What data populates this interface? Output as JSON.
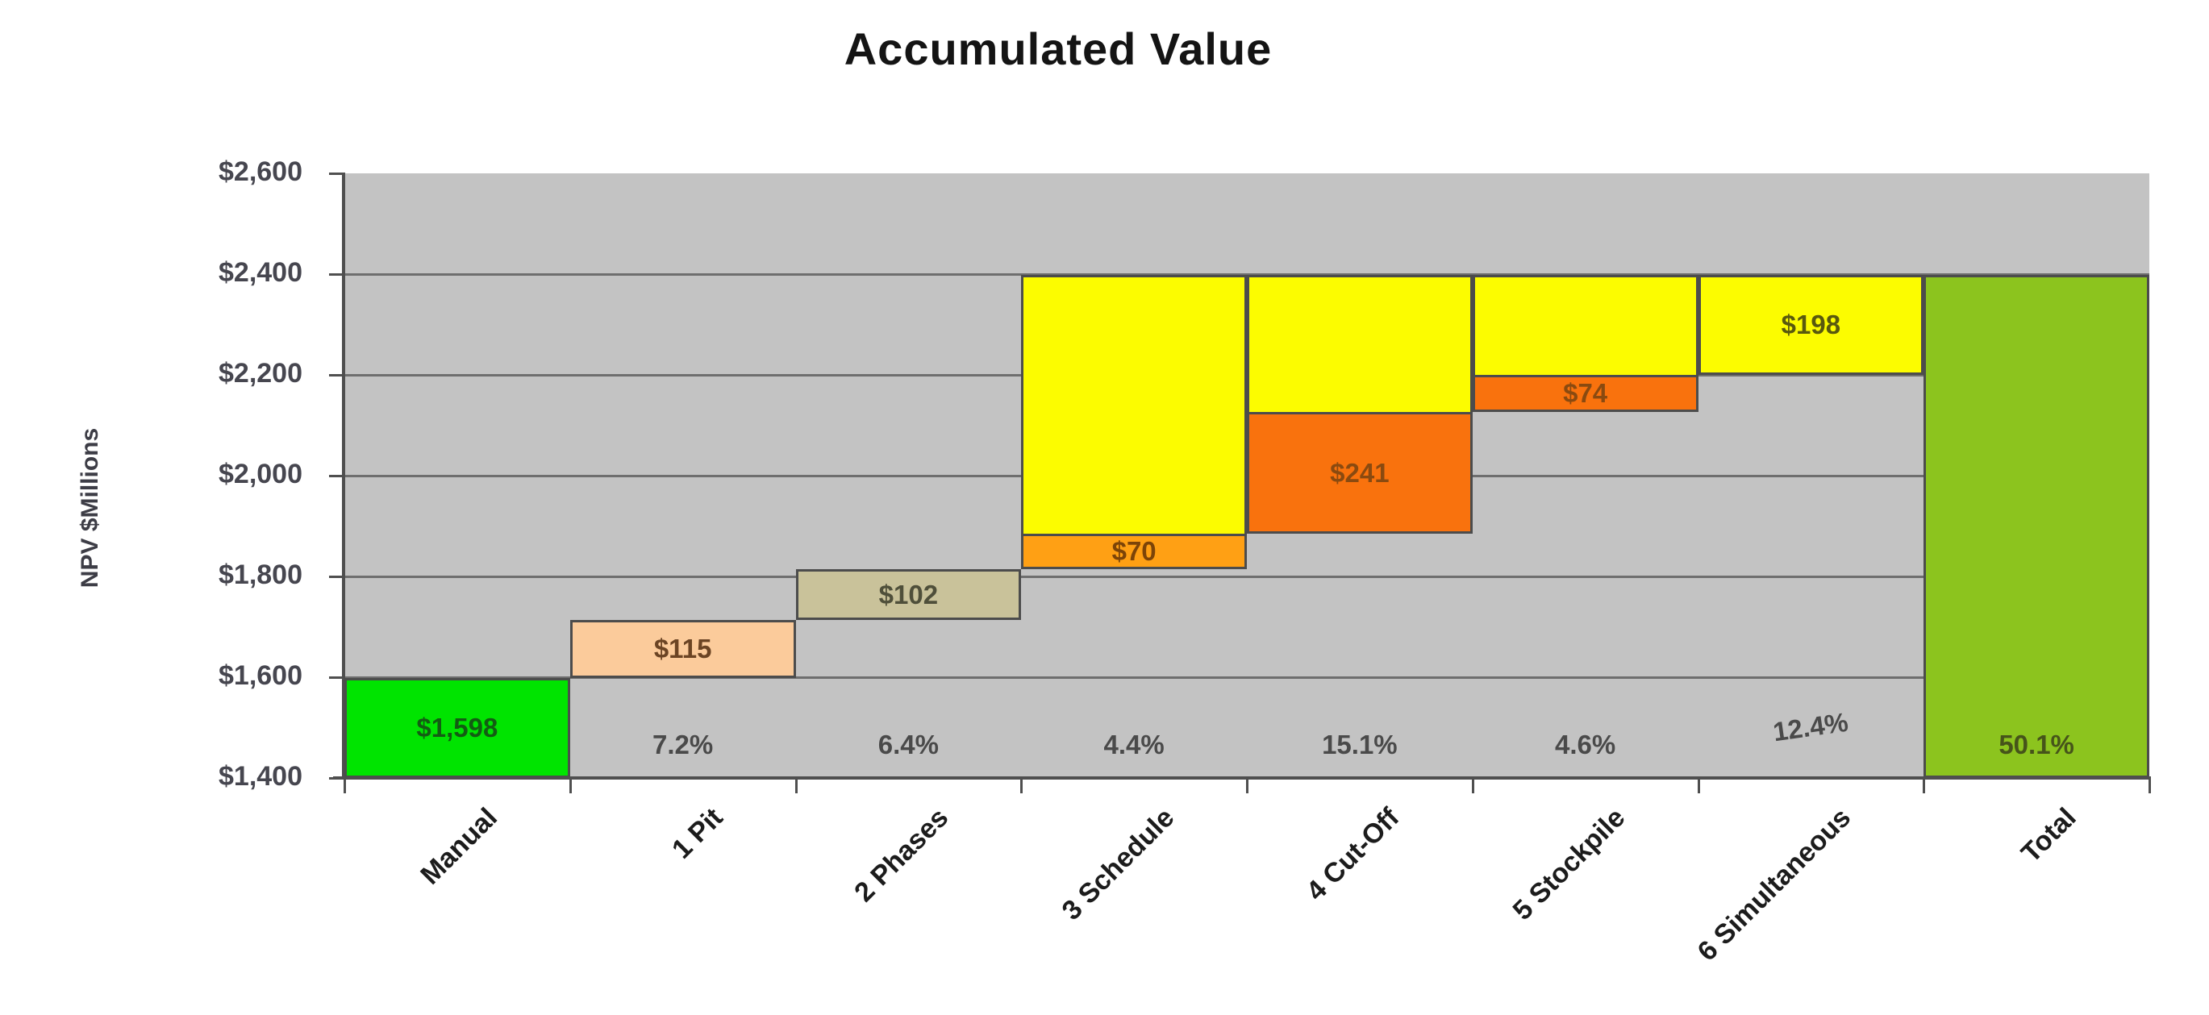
{
  "chart_data": {
    "type": "bar",
    "subtype": "waterfall",
    "title": "Accumulated Value",
    "ylabel": "NPV $Millions",
    "grid": true,
    "legend": false,
    "y_axis": {
      "min": 1400,
      "max": 2600,
      "step": 200,
      "tick_labels": [
        "$2,600",
        "$2,400",
        "$2,200",
        "$2,000",
        "$1,800",
        "$1,600",
        "$1,400"
      ]
    },
    "categories": [
      "Manual",
      "1 Pit",
      "2 Phases",
      "3 Schedule",
      "4 Cut-Off",
      "5 Stockpile",
      "6 Simultaneous",
      "Total"
    ],
    "palette": {
      "plot_background": "#c3c3c3",
      "gridline": "#6e6e6e",
      "bar_border": "#4c4c4c",
      "green": "#00e400",
      "peach": "#fbcb9b",
      "tan": "#c9c29a",
      "orange": "#ffa014",
      "red_orange": "#f9720d",
      "yellow": "#fcfc00",
      "olive_green": "#8cc41e"
    },
    "bars": [
      {
        "category": "Manual",
        "increment": 1598,
        "value_label": "$1,598",
        "percent_label": null,
        "segments": [
          {
            "from": 1400,
            "to": 1598,
            "color_key": "green",
            "label": "$1,598",
            "label_color": "#135c13"
          }
        ]
      },
      {
        "category": "1 Pit",
        "increment": 115,
        "value_label": "$115",
        "percent_label": "7.2%",
        "segments": [
          {
            "from": 1598,
            "to": 1713,
            "color_key": "peach",
            "label": "$115",
            "label_color": "#6b4424"
          }
        ]
      },
      {
        "category": "2 Phases",
        "increment": 102,
        "value_label": "$102",
        "percent_label": "6.4%",
        "segments": [
          {
            "from": 1713,
            "to": 1815,
            "color_key": "tan",
            "label": "$102",
            "label_color": "#4f4f3a"
          }
        ]
      },
      {
        "category": "3 Schedule",
        "increment": 70,
        "value_label": "$70",
        "percent_label": "4.4%",
        "segments": [
          {
            "from": 1815,
            "to": 1885,
            "color_key": "orange",
            "label": "$70",
            "label_color": "#7c4408"
          },
          {
            "from": 1885,
            "to": 2398,
            "color_key": "yellow",
            "label": null,
            "label_color": null
          }
        ]
      },
      {
        "category": "4 Cut-Off",
        "increment": 241,
        "value_label": "$241",
        "percent_label": "15.1%",
        "segments": [
          {
            "from": 1885,
            "to": 2126,
            "color_key": "red_orange",
            "label": "$241",
            "label_color": "#8a4a10"
          },
          {
            "from": 2126,
            "to": 2398,
            "color_key": "yellow",
            "label": null,
            "label_color": null
          }
        ]
      },
      {
        "category": "5 Stockpile",
        "increment": 74,
        "value_label": "$74",
        "percent_label": "4.6%",
        "segments": [
          {
            "from": 2126,
            "to": 2200,
            "color_key": "red_orange",
            "label": "$74",
            "label_color": "#8a4a10"
          },
          {
            "from": 2200,
            "to": 2398,
            "color_key": "yellow",
            "label": null,
            "label_color": null
          }
        ]
      },
      {
        "category": "6 Simultaneous",
        "increment": 198,
        "value_label": "$198",
        "percent_label": "12.4%",
        "segments": [
          {
            "from": 2200,
            "to": 2398,
            "color_key": "yellow",
            "label": "$198",
            "label_color": "#59590e"
          }
        ]
      },
      {
        "category": "Total",
        "increment": 2398,
        "value_label": null,
        "percent_label": "50.1%",
        "segments": [
          {
            "from": 1400,
            "to": 2398,
            "color_key": "olive_green",
            "label": null,
            "label_color": null
          }
        ]
      }
    ]
  }
}
